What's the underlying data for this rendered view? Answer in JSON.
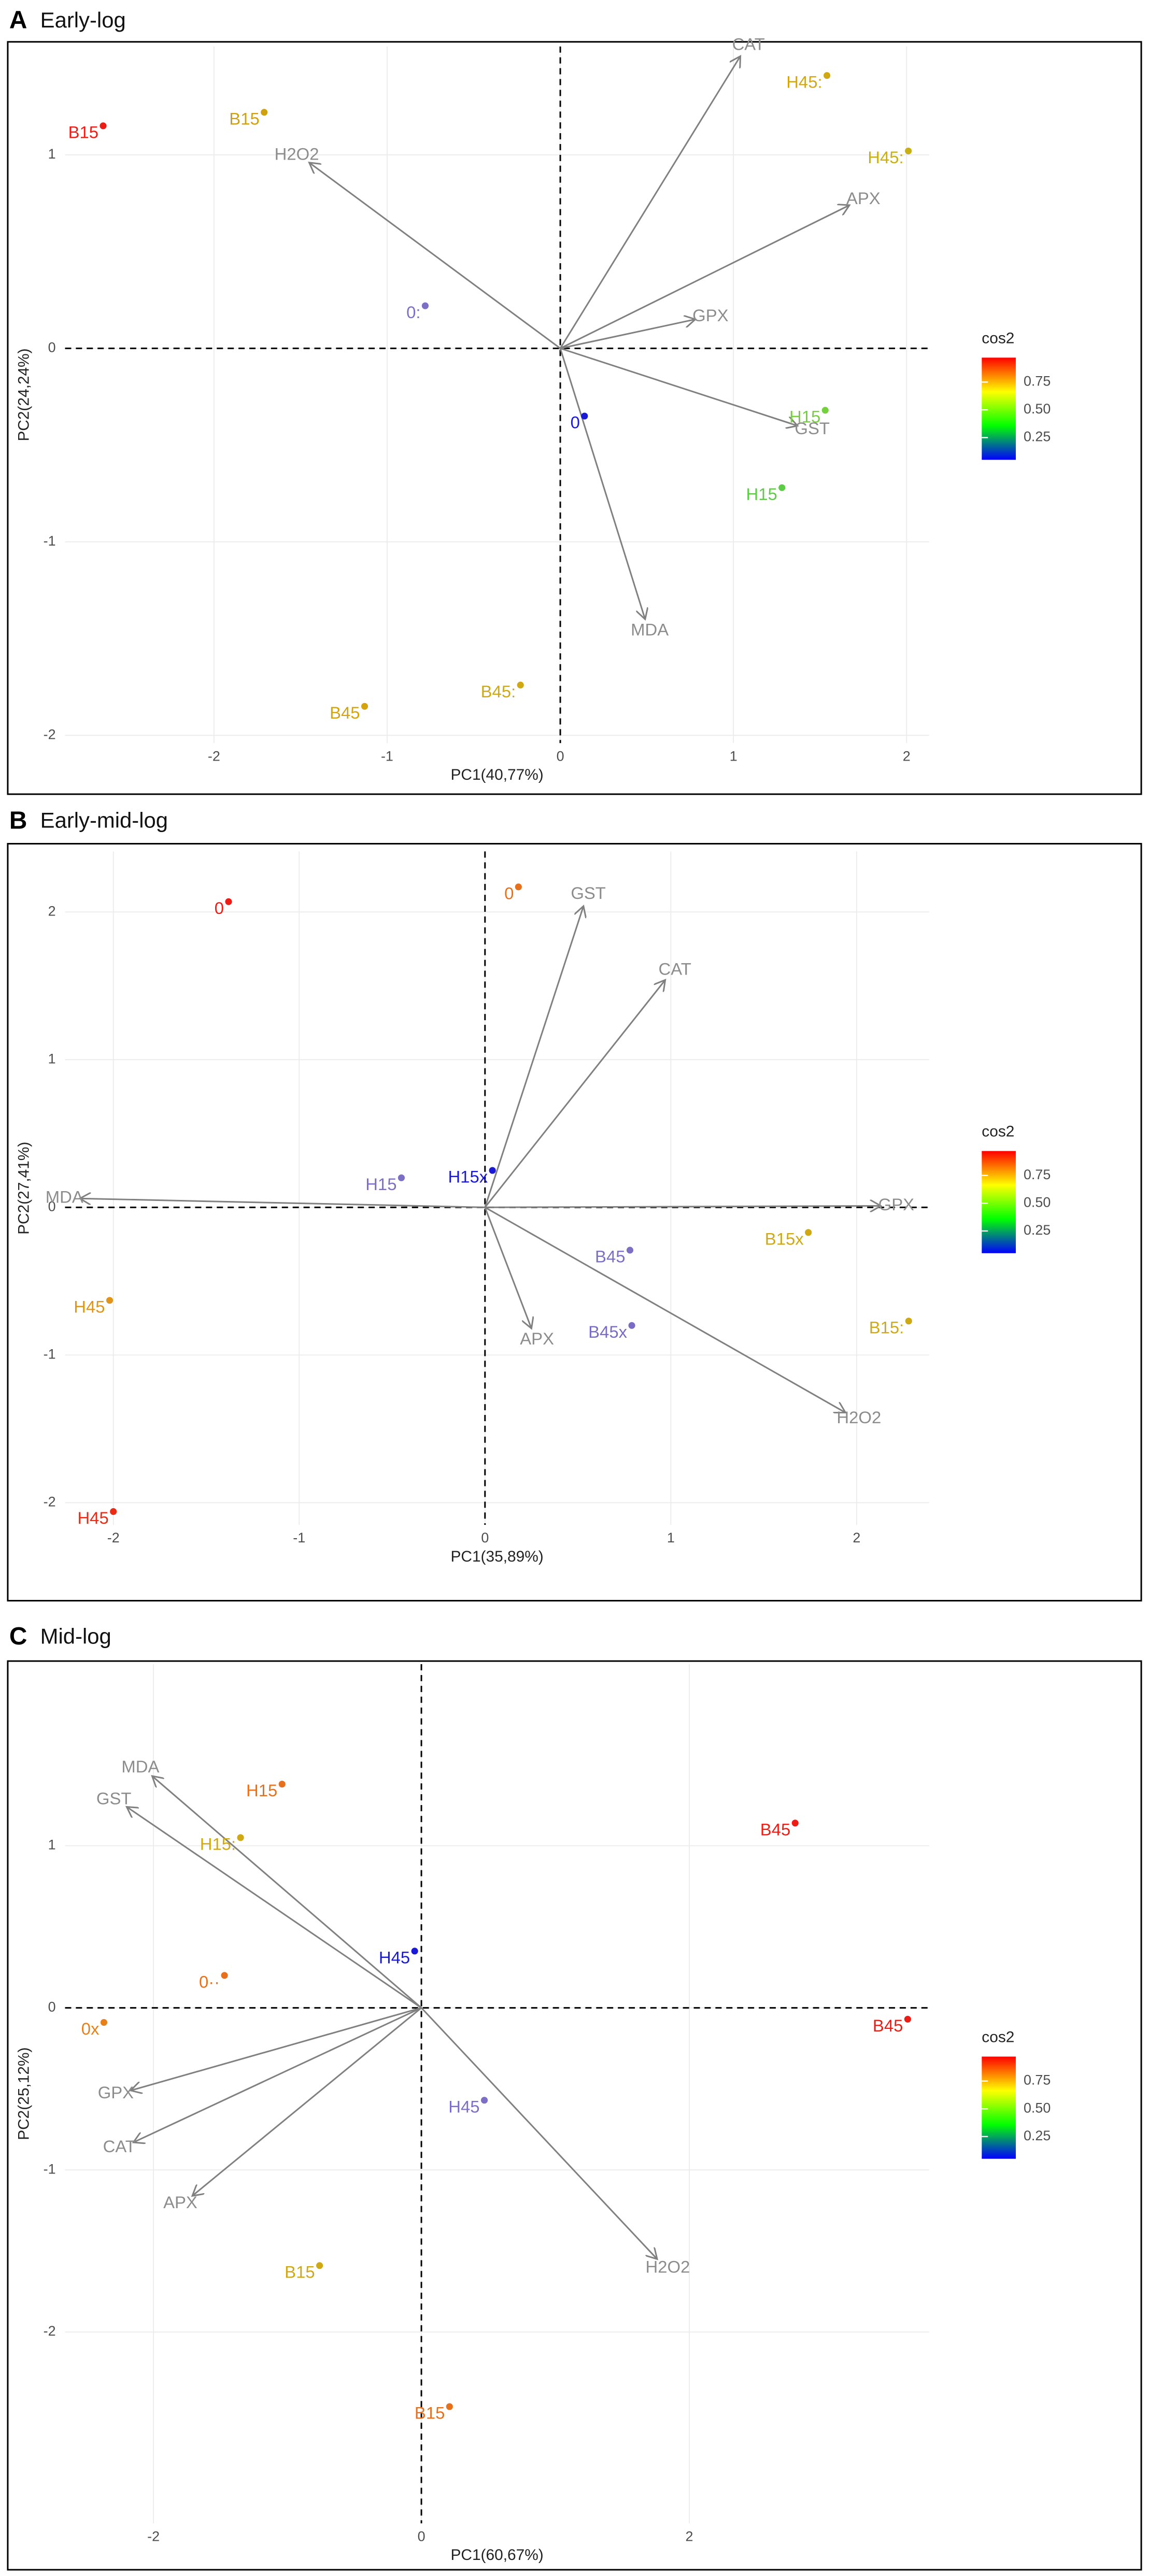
{
  "chart_data": [
    {
      "type": "biplot",
      "panel": "A",
      "title": "Early-log",
      "xlabel": "PC1(40,77%)",
      "ylabel": "PC2(24,24%)",
      "xlim": [
        -2.86,
        2.13
      ],
      "ylim": [
        -2.04,
        1.56
      ],
      "xticks": [
        -2,
        -1,
        0,
        1,
        2
      ],
      "yticks": [
        -2,
        -1,
        0,
        1
      ],
      "grid": true,
      "points": {
        "labels": [
          "B15",
          "B15",
          "0:",
          "0",
          "H45:",
          "H45:",
          "H15",
          "H15",
          "B45",
          "B45:"
        ],
        "x": [
          -2.64,
          -1.71,
          -0.78,
          0.14,
          1.54,
          2.01,
          1.53,
          1.28,
          -1.13,
          -0.23
        ],
        "y": [
          1.15,
          1.22,
          0.22,
          -0.35,
          1.41,
          1.02,
          -0.32,
          -0.72,
          -1.85,
          -1.74
        ],
        "colors": [
          "#ee1c14",
          "#cfa10e",
          "#7b70c6",
          "#1a1ad6",
          "#d2a812",
          "#c9b012",
          "#74d03c",
          "#5ccc46",
          "#d4a40f",
          "#cfa913"
        ]
      },
      "arrows": {
        "labels": [
          "CAT",
          "H2O2",
          "APX",
          "GPX",
          "GST",
          "MDA"
        ],
        "x": [
          1.04,
          -1.45,
          1.67,
          0.78,
          1.37,
          0.49
        ],
        "y": [
          1.51,
          0.96,
          0.74,
          0.15,
          -0.4,
          -1.4
        ]
      },
      "legend": {
        "title": "cos2",
        "ticks": [
          0.25,
          {
            "value": 0.5,
            "label": "0.50"
          },
          0.75
        ],
        "lim": [
          0.05,
          0.97
        ],
        "colors": [
          "#0000ff",
          "#00ff00",
          "#ffff00",
          "#ff0000"
        ]
      }
    },
    {
      "type": "biplot",
      "panel": "B",
      "title": "Early-mid-log",
      "xlabel": "PC1(35,89%)",
      "ylabel": "PC2(27,41%)",
      "xlim": [
        -2.26,
        2.39
      ],
      "ylim": [
        -2.15,
        2.41
      ],
      "xticks": [
        -2,
        -1,
        0,
        1,
        2
      ],
      "yticks": [
        -2,
        -1,
        0,
        1,
        2
      ],
      "grid": true,
      "points": {
        "labels": [
          "0",
          "0",
          "H15",
          "H15x",
          "B45",
          "B45x",
          "B15x",
          "B15:",
          "H45",
          "H45"
        ],
        "x": [
          -1.38,
          0.18,
          -0.45,
          0.04,
          0.78,
          0.79,
          1.74,
          2.28,
          -2.02,
          -2.0
        ],
        "y": [
          2.07,
          2.17,
          0.2,
          0.25,
          -0.29,
          -0.8,
          -0.17,
          -0.77,
          -0.63,
          -2.06
        ],
        "colors": [
          "#ee1c14",
          "#e8701a",
          "#7b70c6",
          "#1a1ad6",
          "#7b70c6",
          "#7a6cc4",
          "#cfa913",
          "#cfa913",
          "#e09418",
          "#ee2a14"
        ]
      },
      "arrows": {
        "labels": [
          "GST",
          "CAT",
          "MDA",
          "GPX",
          "APX",
          "H2O2"
        ],
        "x": [
          0.53,
          0.97,
          -2.18,
          2.13,
          0.25,
          1.94
        ],
        "y": [
          2.04,
          1.54,
          0.06,
          0.01,
          -0.82,
          -1.39
        ]
      },
      "legend": {
        "title": "cos2",
        "ticks": [
          0.25,
          {
            "value": 0.5,
            "label": "0.50"
          },
          0.75
        ],
        "lim": [
          0.05,
          0.97
        ],
        "colors": [
          "#0000ff",
          "#00ff00",
          "#ffff00",
          "#ff0000"
        ]
      }
    },
    {
      "type": "biplot",
      "panel": "C",
      "title": "Mid-log",
      "xlabel": "PC1(60,67%)",
      "ylabel": "PC2(25,12%)",
      "xlim": [
        -2.66,
        3.79
      ],
      "ylim": [
        -3.18,
        2.12
      ],
      "xticks": [
        -2,
        0,
        2
      ],
      "yticks": [
        -2,
        -1,
        0,
        1
      ],
      "grid": true,
      "points": {
        "labels": [
          "H15",
          "H15:",
          "B45",
          "B45",
          "H45",
          "0··",
          "0x",
          "H45",
          "B15",
          "B15"
        ],
        "x": [
          -1.04,
          -1.35,
          2.79,
          3.63,
          -0.05,
          -1.47,
          -2.37,
          0.47,
          -0.76,
          0.21
        ],
        "y": [
          1.38,
          1.05,
          1.14,
          -0.07,
          0.35,
          0.2,
          -0.09,
          -0.57,
          -1.59,
          -2.46
        ],
        "colors": [
          "#e8701a",
          "#cfa913",
          "#ee1c14",
          "#ee1c14",
          "#1a1ad6",
          "#e8701a",
          "#e8801a",
          "#7b70c6",
          "#cfa913",
          "#e8701a"
        ]
      },
      "arrows": {
        "labels": [
          "MDA",
          "GST",
          "GPX",
          "CAT",
          "APX",
          "H2O2"
        ],
        "x": [
          -2.01,
          -2.2,
          -2.17,
          -2.15,
          -1.71,
          1.76
        ],
        "y": [
          1.43,
          1.24,
          -0.51,
          -0.83,
          -1.16,
          -1.55
        ]
      },
      "legend": {
        "title": "cos2",
        "ticks": [
          0.25,
          {
            "value": 0.5,
            "label": "0.50"
          },
          0.75
        ],
        "lim": [
          0.05,
          0.97
        ],
        "colors": [
          "#0000ff",
          "#00ff00",
          "#ffff00",
          "#ff0000"
        ]
      }
    }
  ]
}
